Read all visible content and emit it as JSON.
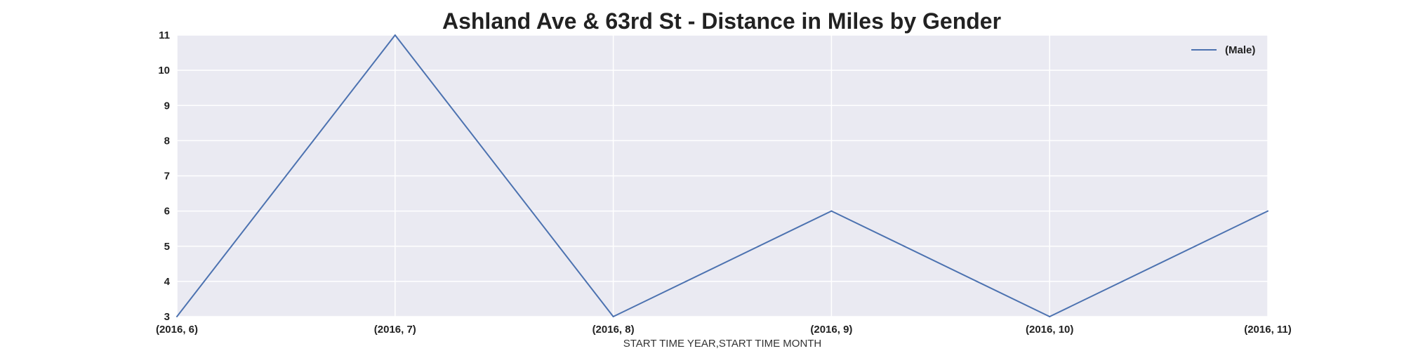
{
  "chart_data": {
    "type": "line",
    "title": "Ashland Ave & 63rd St - Distance in Miles by Gender",
    "xlabel": "START TIME YEAR,START TIME MONTH",
    "ylabel": "",
    "categories": [
      "(2016, 6)",
      "(2016, 7)",
      "(2016, 8)",
      "(2016, 9)",
      "(2016, 10)",
      "(2016, 11)"
    ],
    "series": [
      {
        "name": "(Male)",
        "values": [
          3,
          11,
          3,
          6,
          3,
          6
        ],
        "color": "#4c72b0"
      }
    ],
    "ylim": [
      3,
      11
    ],
    "yticks": [
      3,
      4,
      5,
      6,
      7,
      8,
      9,
      10,
      11
    ],
    "grid": true,
    "legend_position": "top-right",
    "background": "#eaeaf2",
    "grid_color": "#ffffff"
  }
}
